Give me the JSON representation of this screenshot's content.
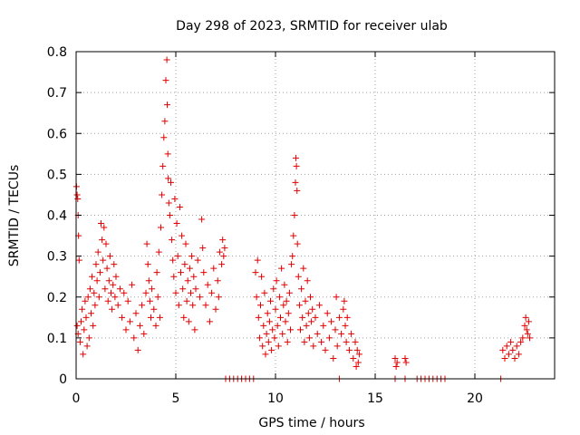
{
  "chart_data": {
    "type": "scatter",
    "title": "Day 298 of 2023, SRMTID for receiver ulab",
    "xlabel": "GPS time / hours",
    "ylabel": "SRMTID / TECUs",
    "xlim": [
      0,
      24
    ],
    "ylim": [
      0,
      0.8
    ],
    "xticks": [
      0,
      5,
      10,
      15,
      20
    ],
    "yticks": [
      0,
      0.1,
      0.2,
      0.3,
      0.4,
      0.5,
      0.6,
      0.7,
      0.8
    ],
    "grid": true,
    "marker": "plus",
    "color": "#e00000",
    "series": [
      {
        "name": "SRMTID",
        "points": [
          [
            0.02,
            0.47
          ],
          [
            0.05,
            0.45
          ],
          [
            0.08,
            0.44
          ],
          [
            0.1,
            0.4
          ],
          [
            0.12,
            0.35
          ],
          [
            0.15,
            0.29
          ],
          [
            0.05,
            0.13
          ],
          [
            0.1,
            0.11
          ],
          [
            0.2,
            0.09
          ],
          [
            0.25,
            0.14
          ],
          [
            0.3,
            0.17
          ],
          [
            0.35,
            0.06
          ],
          [
            0.4,
            0.12
          ],
          [
            0.45,
            0.19
          ],
          [
            0.5,
            0.15
          ],
          [
            0.55,
            0.08
          ],
          [
            0.6,
            0.2
          ],
          [
            0.65,
            0.1
          ],
          [
            0.7,
            0.22
          ],
          [
            0.75,
            0.16
          ],
          [
            0.8,
            0.25
          ],
          [
            0.85,
            0.13
          ],
          [
            0.9,
            0.21
          ],
          [
            0.95,
            0.18
          ],
          [
            1.0,
            0.28
          ],
          [
            1.05,
            0.24
          ],
          [
            1.1,
            0.31
          ],
          [
            1.15,
            0.2
          ],
          [
            1.2,
            0.26
          ],
          [
            1.25,
            0.38
          ],
          [
            1.3,
            0.34
          ],
          [
            1.35,
            0.29
          ],
          [
            1.4,
            0.37
          ],
          [
            1.45,
            0.22
          ],
          [
            1.5,
            0.33
          ],
          [
            1.55,
            0.27
          ],
          [
            1.6,
            0.19
          ],
          [
            1.65,
            0.24
          ],
          [
            1.7,
            0.3
          ],
          [
            1.75,
            0.21
          ],
          [
            1.8,
            0.17
          ],
          [
            1.85,
            0.23
          ],
          [
            1.9,
            0.28
          ],
          [
            1.95,
            0.2
          ],
          [
            2.0,
            0.25
          ],
          [
            2.1,
            0.18
          ],
          [
            2.2,
            0.22
          ],
          [
            2.3,
            0.15
          ],
          [
            2.4,
            0.21
          ],
          [
            2.5,
            0.12
          ],
          [
            2.6,
            0.19
          ],
          [
            2.7,
            0.14
          ],
          [
            2.8,
            0.23
          ],
          [
            2.9,
            0.1
          ],
          [
            3.0,
            0.16
          ],
          [
            3.1,
            0.07
          ],
          [
            3.2,
            0.13
          ],
          [
            3.3,
            0.18
          ],
          [
            3.4,
            0.11
          ],
          [
            3.5,
            0.21
          ],
          [
            3.55,
            0.33
          ],
          [
            3.6,
            0.28
          ],
          [
            3.65,
            0.24
          ],
          [
            3.7,
            0.19
          ],
          [
            3.75,
            0.15
          ],
          [
            3.8,
            0.22
          ],
          [
            3.9,
            0.17
          ],
          [
            4.0,
            0.13
          ],
          [
            4.05,
            0.26
          ],
          [
            4.1,
            0.2
          ],
          [
            4.15,
            0.31
          ],
          [
            4.2,
            0.15
          ],
          [
            4.25,
            0.37
          ],
          [
            4.3,
            0.45
          ],
          [
            4.35,
            0.52
          ],
          [
            4.4,
            0.59
          ],
          [
            4.45,
            0.63
          ],
          [
            4.5,
            0.73
          ],
          [
            4.55,
            0.78
          ],
          [
            4.57,
            0.67
          ],
          [
            4.6,
            0.55
          ],
          [
            4.62,
            0.49
          ],
          [
            4.65,
            0.43
          ],
          [
            4.7,
            0.4
          ],
          [
            4.75,
            0.48
          ],
          [
            4.8,
            0.34
          ],
          [
            4.85,
            0.29
          ],
          [
            4.9,
            0.25
          ],
          [
            4.95,
            0.44
          ],
          [
            5.0,
            0.21
          ],
          [
            5.05,
            0.38
          ],
          [
            5.1,
            0.3
          ],
          [
            5.15,
            0.18
          ],
          [
            5.2,
            0.42
          ],
          [
            5.25,
            0.26
          ],
          [
            5.3,
            0.35
          ],
          [
            5.35,
            0.22
          ],
          [
            5.4,
            0.15
          ],
          [
            5.45,
            0.28
          ],
          [
            5.5,
            0.33
          ],
          [
            5.55,
            0.19
          ],
          [
            5.6,
            0.24
          ],
          [
            5.65,
            0.14
          ],
          [
            5.7,
            0.27
          ],
          [
            5.75,
            0.21
          ],
          [
            5.8,
            0.3
          ],
          [
            5.85,
            0.18
          ],
          [
            5.9,
            0.25
          ],
          [
            5.95,
            0.12
          ],
          [
            6.0,
            0.22
          ],
          [
            6.1,
            0.29
          ],
          [
            6.2,
            0.2
          ],
          [
            6.3,
            0.39
          ],
          [
            6.35,
            0.32
          ],
          [
            6.4,
            0.26
          ],
          [
            6.5,
            0.18
          ],
          [
            6.6,
            0.23
          ],
          [
            6.7,
            0.14
          ],
          [
            6.8,
            0.21
          ],
          [
            6.9,
            0.27
          ],
          [
            7.0,
            0.17
          ],
          [
            7.1,
            0.24
          ],
          [
            7.15,
            0.2
          ],
          [
            7.2,
            0.31
          ],
          [
            7.3,
            0.28
          ],
          [
            7.35,
            0.34
          ],
          [
            7.4,
            0.3
          ],
          [
            7.45,
            0.32
          ],
          [
            7.5,
            0.0
          ],
          [
            7.7,
            0.0
          ],
          [
            7.9,
            0.0
          ],
          [
            8.1,
            0.0
          ],
          [
            8.3,
            0.0
          ],
          [
            8.5,
            0.0
          ],
          [
            8.7,
            0.0
          ],
          [
            8.9,
            0.0
          ],
          [
            9.0,
            0.26
          ],
          [
            9.05,
            0.2
          ],
          [
            9.1,
            0.29
          ],
          [
            9.15,
            0.15
          ],
          [
            9.2,
            0.1
          ],
          [
            9.25,
            0.18
          ],
          [
            9.3,
            0.25
          ],
          [
            9.35,
            0.08
          ],
          [
            9.4,
            0.13
          ],
          [
            9.45,
            0.21
          ],
          [
            9.5,
            0.06
          ],
          [
            9.55,
            0.11
          ],
          [
            9.6,
            0.16
          ],
          [
            9.65,
            0.09
          ],
          [
            9.7,
            0.14
          ],
          [
            9.75,
            0.19
          ],
          [
            9.8,
            0.07
          ],
          [
            9.85,
            0.12
          ],
          [
            9.9,
            0.22
          ],
          [
            9.95,
            0.1
          ],
          [
            10.0,
            0.17
          ],
          [
            10.05,
            0.24
          ],
          [
            10.1,
            0.13
          ],
          [
            10.15,
            0.08
          ],
          [
            10.2,
            0.2
          ],
          [
            10.25,
            0.15
          ],
          [
            10.3,
            0.27
          ],
          [
            10.35,
            0.11
          ],
          [
            10.4,
            0.18
          ],
          [
            10.45,
            0.23
          ],
          [
            10.5,
            0.14
          ],
          [
            10.55,
            0.19
          ],
          [
            10.6,
            0.09
          ],
          [
            10.65,
            0.16
          ],
          [
            10.7,
            0.21
          ],
          [
            10.75,
            0.12
          ],
          [
            10.8,
            0.28
          ],
          [
            10.85,
            0.3
          ],
          [
            10.9,
            0.35
          ],
          [
            10.95,
            0.4
          ],
          [
            11.0,
            0.48
          ],
          [
            11.02,
            0.54
          ],
          [
            11.05,
            0.52
          ],
          [
            11.08,
            0.46
          ],
          [
            11.1,
            0.33
          ],
          [
            11.15,
            0.25
          ],
          [
            11.2,
            0.18
          ],
          [
            11.25,
            0.12
          ],
          [
            11.3,
            0.22
          ],
          [
            11.35,
            0.15
          ],
          [
            11.4,
            0.27
          ],
          [
            11.45,
            0.09
          ],
          [
            11.5,
            0.19
          ],
          [
            11.55,
            0.13
          ],
          [
            11.6,
            0.24
          ],
          [
            11.65,
            0.16
          ],
          [
            11.7,
            0.1
          ],
          [
            11.75,
            0.2
          ],
          [
            11.8,
            0.14
          ],
          [
            11.85,
            0.17
          ],
          [
            11.9,
            0.08
          ],
          [
            12.0,
            0.15
          ],
          [
            12.1,
            0.11
          ],
          [
            12.2,
            0.18
          ],
          [
            12.3,
            0.09
          ],
          [
            12.4,
            0.13
          ],
          [
            12.5,
            0.07
          ],
          [
            12.6,
            0.16
          ],
          [
            12.7,
            0.1
          ],
          [
            12.8,
            0.14
          ],
          [
            12.9,
            0.05
          ],
          [
            13.0,
            0.12
          ],
          [
            13.05,
            0.2
          ],
          [
            13.1,
            0.08
          ],
          [
            13.2,
            0.15
          ],
          [
            13.3,
            0.11
          ],
          [
            13.4,
            0.17
          ],
          [
            13.45,
            0.19
          ],
          [
            13.5,
            0.13
          ],
          [
            13.55,
            0.09
          ],
          [
            13.6,
            0.15
          ],
          [
            13.7,
            0.07
          ],
          [
            13.8,
            0.11
          ],
          [
            13.9,
            0.05
          ],
          [
            14.0,
            0.09
          ],
          [
            14.05,
            0.03
          ],
          [
            14.1,
            0.07
          ],
          [
            14.15,
            0.04
          ],
          [
            14.2,
            0.06
          ],
          [
            13.2,
            0.0
          ],
          [
            16.0,
            0.05
          ],
          [
            16.05,
            0.03
          ],
          [
            16.1,
            0.04
          ],
          [
            16.0,
            0.0
          ],
          [
            16.5,
            0.05
          ],
          [
            16.55,
            0.04
          ],
          [
            16.5,
            0.0
          ],
          [
            17.1,
            0.0
          ],
          [
            17.3,
            0.0
          ],
          [
            17.5,
            0.0
          ],
          [
            17.7,
            0.0
          ],
          [
            17.9,
            0.0
          ],
          [
            18.1,
            0.0
          ],
          [
            18.3,
            0.0
          ],
          [
            18.5,
            0.0
          ],
          [
            21.3,
            0.0
          ],
          [
            21.4,
            0.07
          ],
          [
            21.5,
            0.05
          ],
          [
            21.6,
            0.08
          ],
          [
            21.7,
            0.06
          ],
          [
            21.8,
            0.09
          ],
          [
            21.9,
            0.07
          ],
          [
            22.0,
            0.05
          ],
          [
            22.1,
            0.08
          ],
          [
            22.2,
            0.06
          ],
          [
            22.3,
            0.09
          ],
          [
            22.4,
            0.1
          ],
          [
            22.5,
            0.13
          ],
          [
            22.55,
            0.15
          ],
          [
            22.6,
            0.12
          ],
          [
            22.65,
            0.11
          ],
          [
            22.7,
            0.14
          ],
          [
            22.75,
            0.1
          ]
        ]
      }
    ]
  }
}
